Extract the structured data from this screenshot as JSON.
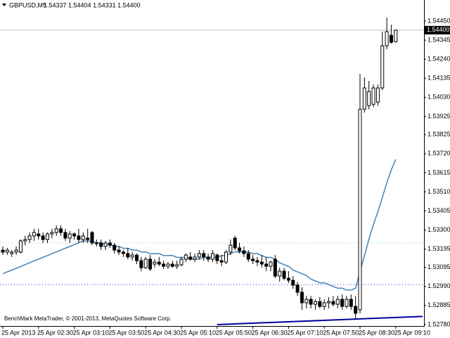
{
  "chart_data": {
    "type": "candlestick",
    "title": "GBPUSD,M5",
    "subtitle": "1.54337 1.54404 1.54331 1.54400",
    "annotation": "BenchMark MetaTrader, © 2001-2013, MetaQuotes Software Corp.",
    "categories": [
      "25 Apr 2013",
      null,
      null,
      null,
      null,
      null,
      null,
      null,
      "25 Apr 02:30",
      null,
      null,
      null,
      null,
      null,
      null,
      null,
      "25 Apr 03:10",
      null,
      null,
      null,
      null,
      null,
      null,
      null,
      "25 Apr 03:50",
      null,
      null,
      null,
      null,
      null,
      null,
      null,
      "25 Apr 04:30",
      null,
      null,
      null,
      null,
      null,
      null,
      null,
      "25 Apr 05:10",
      null,
      null,
      null,
      null,
      null,
      null,
      null,
      "25 Apr 05:50",
      null,
      null,
      null,
      null,
      null,
      null,
      null,
      "25 Apr 06:30",
      null,
      null,
      null,
      null,
      null,
      null,
      null,
      "25 Apr 07:10",
      null,
      null,
      null,
      null,
      null,
      null,
      null,
      "25 Apr 07:50",
      null,
      null,
      null,
      null,
      null,
      null,
      null,
      "25 Apr 08:30",
      null,
      null,
      null,
      null,
      null,
      null,
      null,
      "25 Apr 09:10"
    ],
    "open": [
      1.5319,
      1.53179,
      1.53171,
      1.53179,
      1.53179,
      1.53241,
      1.53248,
      1.53268,
      1.53279,
      1.53268,
      1.53248,
      1.53279,
      1.53287,
      1.53307,
      1.53287,
      1.53256,
      1.53279,
      1.53268,
      1.53248,
      1.53256,
      1.53287,
      1.53229,
      1.53229,
      1.5321,
      1.53229,
      1.53217,
      1.5319,
      1.53179,
      1.53171,
      1.53152,
      1.53163,
      1.53132,
      1.53093,
      1.5314,
      1.53113,
      1.53124,
      1.53113,
      1.53101,
      1.53113,
      1.53101,
      1.53109,
      1.5314,
      1.53152,
      1.5314,
      1.53152,
      1.53171,
      1.53152,
      1.5314,
      1.53163,
      1.53132,
      1.53124,
      1.53179,
      1.53256,
      1.53202,
      1.53186,
      1.53171,
      1.5314,
      1.53132,
      1.53124,
      1.53113,
      1.53101,
      1.5314,
      1.53047,
      1.53074,
      1.53035,
      1.53024,
      1.52997,
      1.52958,
      1.529,
      1.52919,
      1.52892,
      1.52907,
      1.5288,
      1.529,
      1.52907,
      1.52892,
      1.52919,
      1.5288,
      1.52919,
      1.5288,
      1.52861,
      1.53965,
      1.53985,
      1.53992,
      1.54004,
      1.54082,
      1.54314,
      1.54372,
      1.54337
    ],
    "high": [
      1.5321,
      1.53202,
      1.5319,
      1.5321,
      1.53248,
      1.53268,
      1.53287,
      1.53307,
      1.53307,
      1.53287,
      1.53287,
      1.53307,
      1.53326,
      1.53326,
      1.53307,
      1.53295,
      1.53287,
      1.53307,
      1.53287,
      1.53307,
      1.53295,
      1.53248,
      1.53248,
      1.53241,
      1.53248,
      1.53229,
      1.5321,
      1.5319,
      1.53202,
      1.53179,
      1.53171,
      1.53152,
      1.53152,
      1.53163,
      1.5314,
      1.53152,
      1.53132,
      1.53124,
      1.53132,
      1.53132,
      1.53152,
      1.53171,
      1.53179,
      1.53171,
      1.5319,
      1.5319,
      1.53171,
      1.5319,
      1.53171,
      1.53163,
      1.5319,
      1.53248,
      1.53268,
      1.53229,
      1.5321,
      1.5319,
      1.53163,
      1.53152,
      1.53163,
      1.53152,
      1.53132,
      1.53163,
      1.53093,
      1.53093,
      1.53074,
      1.53047,
      1.53016,
      1.52985,
      1.52938,
      1.52938,
      1.52919,
      1.52931,
      1.52919,
      1.52931,
      1.52938,
      1.52938,
      1.52946,
      1.52938,
      1.52946,
      1.52938,
      1.54159,
      1.5414,
      1.5412,
      1.54101,
      1.54101,
      1.54392,
      1.54469,
      1.5443,
      1.54404
    ],
    "low": [
      1.53163,
      1.53163,
      1.53152,
      1.53163,
      1.53171,
      1.53217,
      1.53229,
      1.53241,
      1.53248,
      1.53229,
      1.53229,
      1.53256,
      1.53268,
      1.53268,
      1.53241,
      1.53229,
      1.53248,
      1.53229,
      1.53229,
      1.53229,
      1.53217,
      1.5321,
      1.5319,
      1.5319,
      1.53202,
      1.53171,
      1.53163,
      1.53152,
      1.5314,
      1.53132,
      1.53113,
      1.53074,
      1.53086,
      1.53074,
      1.53093,
      1.53101,
      1.53086,
      1.53086,
      1.53093,
      1.53086,
      1.53101,
      1.53124,
      1.53132,
      1.53124,
      1.5314,
      1.53132,
      1.53124,
      1.53124,
      1.53113,
      1.53101,
      1.53113,
      1.53163,
      1.5319,
      1.53171,
      1.53152,
      1.53124,
      1.53113,
      1.53101,
      1.53093,
      1.53074,
      1.53074,
      1.53035,
      1.53016,
      1.53024,
      1.53008,
      1.52977,
      1.52938,
      1.52861,
      1.52869,
      1.52869,
      1.52861,
      1.52869,
      1.52861,
      1.52869,
      1.5288,
      1.52869,
      1.52861,
      1.52869,
      1.52861,
      1.52814,
      1.52842,
      1.53946,
      1.53965,
      1.53977,
      1.53985,
      1.5407,
      1.54295,
      1.54326,
      1.54331
    ],
    "close": [
      1.53179,
      1.5319,
      1.53179,
      1.5319,
      1.53241,
      1.53248,
      1.53268,
      1.53287,
      1.53268,
      1.53248,
      1.53279,
      1.53287,
      1.53307,
      1.53287,
      1.53256,
      1.53279,
      1.53268,
      1.53248,
      1.53268,
      1.53248,
      1.53229,
      1.53229,
      1.5321,
      1.53229,
      1.53217,
      1.5319,
      1.53179,
      1.53171,
      1.53152,
      1.53163,
      1.53132,
      1.53093,
      1.5314,
      1.53086,
      1.53124,
      1.53113,
      1.53101,
      1.53113,
      1.53101,
      1.53109,
      1.5314,
      1.53163,
      1.5314,
      1.53152,
      1.53171,
      1.53152,
      1.5314,
      1.53171,
      1.53132,
      1.53124,
      1.53179,
      1.53217,
      1.53202,
      1.53186,
      1.53171,
      1.5314,
      1.53132,
      1.53124,
      1.53113,
      1.53101,
      1.53124,
      1.53047,
      1.53074,
      1.53035,
      1.53024,
      1.52997,
      1.52958,
      1.529,
      1.52919,
      1.52892,
      1.52907,
      1.5288,
      1.529,
      1.52907,
      1.52892,
      1.52919,
      1.5288,
      1.52919,
      1.5288,
      1.52842,
      1.53965,
      1.54082,
      1.54062,
      1.54082,
      1.54082,
      1.54314,
      1.54392,
      1.54333,
      1.544
    ],
    "up_color": "#ffffff",
    "down_color": "#000000",
    "lines": [
      {
        "color": "#4682b4",
        "values": [
          1.5306,
          1.5307,
          1.5308,
          1.5309,
          1.531,
          1.5311,
          1.5312,
          1.5313,
          1.5314,
          1.5315,
          1.5316,
          1.5317,
          1.5318,
          1.5319,
          1.532,
          1.5321,
          1.5322,
          1.5323,
          1.5324,
          1.5324,
          1.5324,
          1.5323,
          1.5323,
          1.5322,
          1.5322,
          1.5321,
          1.5321,
          1.532,
          1.532,
          1.5319,
          1.5319,
          1.5318,
          1.5318,
          1.5317,
          1.5317,
          1.5317,
          1.5316,
          1.5316,
          1.5316,
          1.5315,
          1.5315,
          1.5315,
          1.5314,
          1.5314,
          1.5314,
          1.5315,
          1.5315,
          1.5315,
          1.5315,
          1.5316,
          1.5316,
          1.5317,
          1.5318,
          1.5318,
          1.5318,
          1.5318,
          1.5317,
          1.5317,
          1.5316,
          1.5315,
          1.5315,
          1.5314,
          1.5312,
          1.5311,
          1.531,
          1.5308,
          1.5307,
          1.5306,
          1.5305,
          1.5303,
          1.5302,
          1.5301,
          1.5301,
          1.53,
          1.5299,
          1.5298,
          1.5298,
          1.5297,
          1.5297,
          1.5298,
          1.5307,
          1.5316,
          1.5325,
          1.5333,
          1.534,
          1.5348,
          1.5356,
          1.5363,
          1.5369
        ]
      }
    ],
    "levels": [
      {
        "value": 1.5323,
        "color": "#7fd8e0"
      },
      {
        "value": 1.53,
        "color": "#3030d0"
      }
    ],
    "trendline": {
      "from": [
        48,
        1.5278
      ],
      "to": [
        94,
        1.52825
      ],
      "color": "#0000a0"
    },
    "current_price": {
      "value": 1.544,
      "label": "1.54400"
    },
    "ylim": [
      1.52776,
      1.54566
    ],
    "yticks": [
      {
        "value": 1.5445,
        "label": "1.54450"
      },
      1.54345,
      {
        "value": 1.5424,
        "label": "1.54240"
      },
      1.54135,
      {
        "value": 1.5403,
        "label": "1.54030"
      },
      1.53925,
      1.53825,
      {
        "value": 1.5372,
        "label": "1.53720"
      },
      1.53615,
      {
        "value": 1.5351,
        "label": "1.53510"
      },
      1.53405,
      {
        "value": 1.533,
        "label": "1.53300"
      },
      1.53195,
      1.53095,
      {
        "value": 1.5299,
        "label": "1.52990"
      },
      1.52885,
      {
        "value": 1.5278,
        "label": "1.52780"
      }
    ]
  }
}
